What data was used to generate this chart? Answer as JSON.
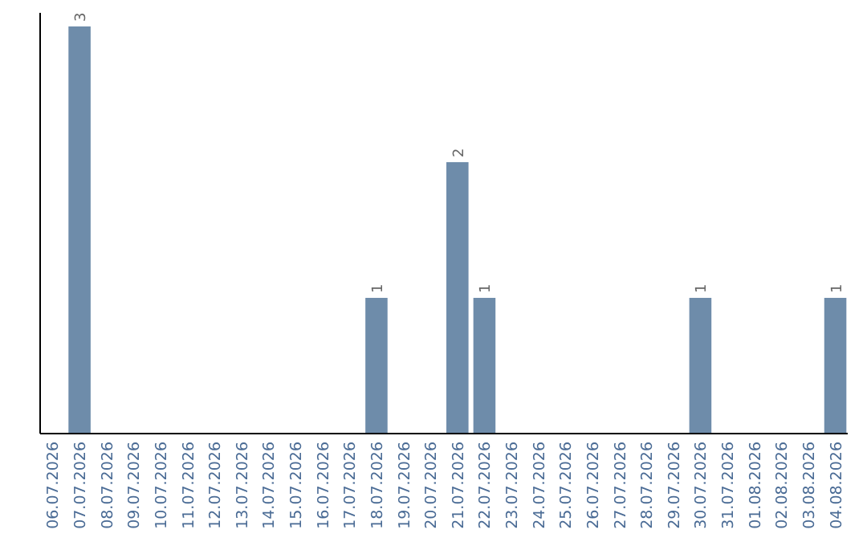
{
  "chart_data": {
    "type": "bar",
    "categories": [
      "06.07.2026",
      "07.07.2026",
      "08.07.2026",
      "09.07.2026",
      "10.07.2026",
      "11.07.2026",
      "12.07.2026",
      "13.07.2026",
      "14.07.2026",
      "15.07.2026",
      "16.07.2026",
      "17.07.2026",
      "18.07.2026",
      "19.07.2026",
      "20.07.2026",
      "21.07.2026",
      "22.07.2026",
      "23.07.2026",
      "24.07.2026",
      "25.07.2026",
      "26.07.2026",
      "27.07.2026",
      "28.07.2026",
      "29.07.2026",
      "30.07.2026",
      "31.07.2026",
      "01.08.2026",
      "02.08.2026",
      "03.08.2026",
      "04.08.2026"
    ],
    "values": [
      null,
      3,
      null,
      null,
      null,
      null,
      null,
      null,
      null,
      null,
      null,
      null,
      1,
      null,
      null,
      2,
      1,
      null,
      null,
      null,
      null,
      null,
      null,
      null,
      1,
      null,
      null,
      null,
      null,
      1
    ],
    "color": "#6e8caa",
    "ylim": [
      0,
      3.1
    ],
    "data_labels": true,
    "tick_labels": "x"
  }
}
